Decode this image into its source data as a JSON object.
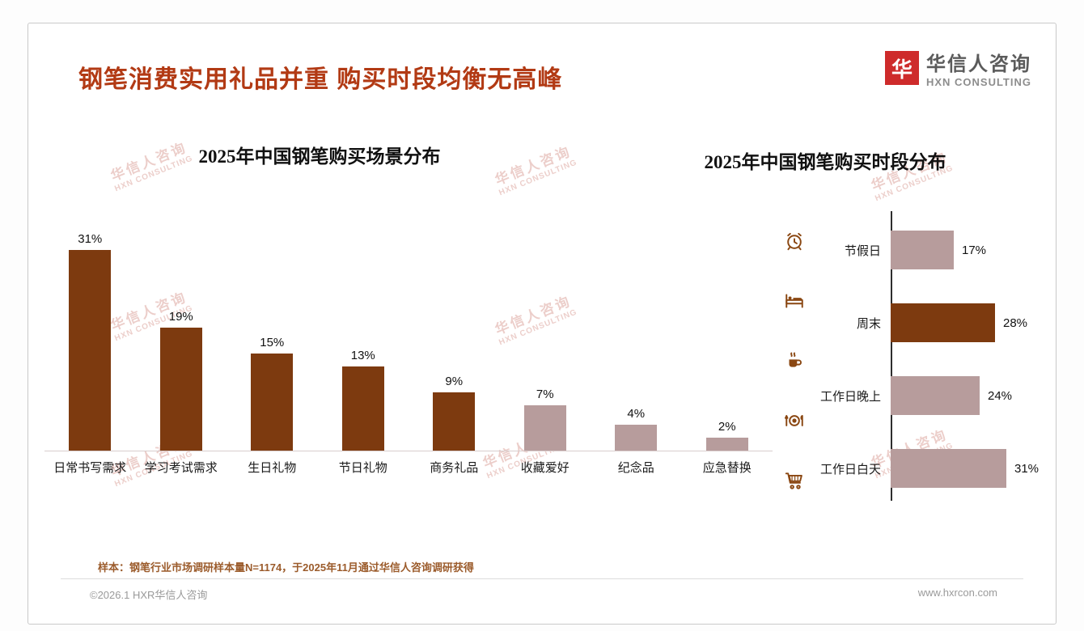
{
  "header": {
    "title": "钢笔消费实用礼品并重 购买时段均衡无高峰",
    "logo": {
      "icon_char": "华",
      "name_cn": "华信人咨询",
      "name_en": "HXN CONSULTING"
    }
  },
  "watermark": {
    "line1": "华信人咨询",
    "line2": "HXN CONSULTING"
  },
  "colors": {
    "dark_bar": "#7d3a0f",
    "light_bar": "#b79c9c",
    "accent": "#b23a14",
    "logo_red": "#ce2b2b",
    "axis": "#2e2e2e"
  },
  "chart_data": [
    {
      "type": "bar",
      "orientation": "vertical",
      "title": "2025年中国钢笔购买场景分布",
      "categories": [
        "日常书写需求",
        "学习考试需求",
        "生日礼物",
        "节日礼物",
        "商务礼品",
        "收藏爱好",
        "纪念品",
        "应急替换"
      ],
      "values": [
        31,
        19,
        15,
        13,
        9,
        7,
        4,
        2
      ],
      "unit": "%",
      "bar_styles": [
        "dark",
        "dark",
        "dark",
        "dark",
        "dark",
        "light",
        "light",
        "light"
      ],
      "ylim": [
        0,
        35
      ],
      "grid": false,
      "value_labels": true,
      "legend": "none"
    },
    {
      "type": "bar",
      "orientation": "horizontal",
      "title": "2025年中国钢笔购买时段分布",
      "categories": [
        "节假日",
        "周末",
        "工作日晚上",
        "工作日白天"
      ],
      "values": [
        17,
        28,
        24,
        31
      ],
      "unit": "%",
      "bar_styles": [
        "light",
        "dark",
        "light",
        "light"
      ],
      "xlim": [
        0,
        35
      ],
      "grid": false,
      "value_labels": true,
      "legend": "none",
      "icons": [
        "alarm-clock-icon",
        "bed-icon",
        "coffee-cup-icon",
        "dining-plate-icon",
        "shopping-cart-icon"
      ]
    }
  ],
  "footnote": "样本：钢笔行业市场调研样本量N=1174，于2025年11月通过华信人咨询调研获得",
  "footer": {
    "left": "©2026.1 HXR华信人咨询",
    "right": "www.hxrcon.com"
  }
}
